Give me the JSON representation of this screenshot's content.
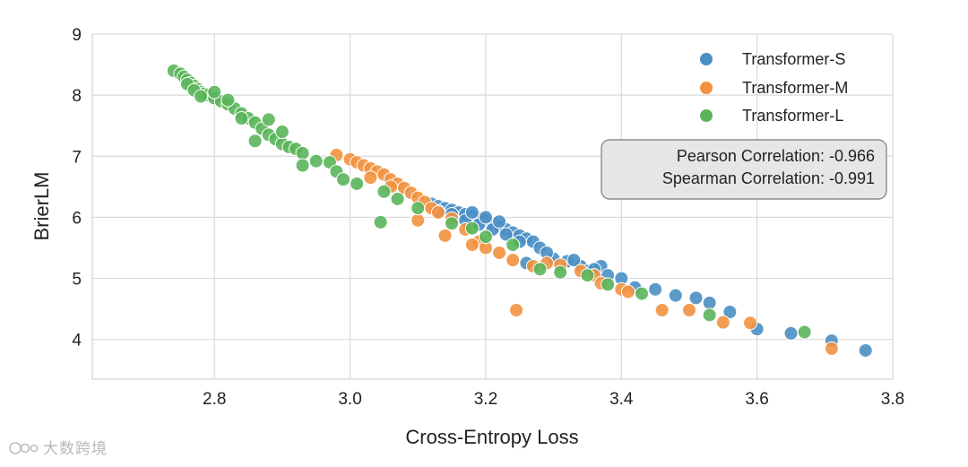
{
  "chart_data": {
    "type": "scatter",
    "title": "",
    "xlabel": "Cross-Entropy Loss",
    "ylabel": "BrierLM",
    "xlim": [
      2.62,
      3.8
    ],
    "ylim": [
      3.35,
      9.0
    ],
    "xticks": [
      "2.8",
      "3.0",
      "3.2",
      "3.4",
      "3.6",
      "3.8"
    ],
    "yticks": [
      "4",
      "5",
      "6",
      "7",
      "8",
      "9"
    ],
    "grid": true,
    "legend_position": "top-right",
    "colors": {
      "Transformer-S": "#4a8fc4",
      "Transformer-M": "#f2923f",
      "Transformer-L": "#5ab55a",
      "box_fill": "#e6e6e6",
      "box_border": "#8c8c8c"
    },
    "annotation": [
      "Pearson Correlation: -0.966",
      "Spearman Correlation: -0.991"
    ],
    "series": [
      {
        "name": "Transformer-S",
        "color": "#4a8fc4",
        "points": [
          [
            3.12,
            6.22
          ],
          [
            3.13,
            6.18
          ],
          [
            3.14,
            6.15
          ],
          [
            3.15,
            6.12
          ],
          [
            3.16,
            6.08
          ],
          [
            3.17,
            6.05
          ],
          [
            3.18,
            6.02
          ],
          [
            3.19,
            5.98
          ],
          [
            3.2,
            5.95
          ],
          [
            3.21,
            5.9
          ],
          [
            3.22,
            5.85
          ],
          [
            3.23,
            5.8
          ],
          [
            3.24,
            5.75
          ],
          [
            3.25,
            5.7
          ],
          [
            3.26,
            5.65
          ],
          [
            3.27,
            5.6
          ],
          [
            3.28,
            5.5
          ],
          [
            3.26,
            5.25
          ],
          [
            3.3,
            5.32
          ],
          [
            3.32,
            5.28
          ],
          [
            3.34,
            5.2
          ],
          [
            3.35,
            5.12
          ],
          [
            3.37,
            5.2
          ],
          [
            3.38,
            5.05
          ],
          [
            3.4,
            5.0
          ],
          [
            3.42,
            4.85
          ],
          [
            3.45,
            4.82
          ],
          [
            3.48,
            4.72
          ],
          [
            3.51,
            4.68
          ],
          [
            3.53,
            4.6
          ],
          [
            3.56,
            4.45
          ],
          [
            3.6,
            4.17
          ],
          [
            3.65,
            4.1
          ],
          [
            3.71,
            3.98
          ],
          [
            3.76,
            3.82
          ],
          [
            3.13,
            6.1
          ],
          [
            3.15,
            6.05
          ],
          [
            3.17,
            5.95
          ],
          [
            3.19,
            5.88
          ],
          [
            3.21,
            5.8
          ],
          [
            3.23,
            5.72
          ],
          [
            3.25,
            5.6
          ],
          [
            3.18,
            6.08
          ],
          [
            3.2,
            6.0
          ],
          [
            3.22,
            5.93
          ],
          [
            3.29,
            5.42
          ],
          [
            3.33,
            5.3
          ],
          [
            3.36,
            5.15
          ]
        ]
      },
      {
        "name": "Transformer-M",
        "color": "#f2923f",
        "points": [
          [
            2.98,
            7.02
          ],
          [
            3.0,
            6.95
          ],
          [
            3.01,
            6.9
          ],
          [
            3.02,
            6.85
          ],
          [
            3.03,
            6.8
          ],
          [
            3.04,
            6.75
          ],
          [
            3.05,
            6.7
          ],
          [
            3.06,
            6.62
          ],
          [
            3.07,
            6.55
          ],
          [
            3.08,
            6.48
          ],
          [
            3.09,
            6.4
          ],
          [
            3.1,
            6.32
          ],
          [
            3.11,
            6.25
          ],
          [
            3.12,
            6.15
          ],
          [
            3.13,
            6.08
          ],
          [
            3.15,
            5.98
          ],
          [
            3.17,
            5.8
          ],
          [
            3.19,
            5.6
          ],
          [
            3.2,
            5.5
          ],
          [
            3.22,
            5.42
          ],
          [
            3.24,
            5.3
          ],
          [
            3.27,
            5.2
          ],
          [
            3.29,
            5.25
          ],
          [
            3.31,
            5.22
          ],
          [
            3.34,
            5.12
          ],
          [
            3.36,
            5.05
          ],
          [
            3.37,
            4.92
          ],
          [
            3.4,
            4.82
          ],
          [
            3.41,
            4.78
          ],
          [
            3.46,
            4.48
          ],
          [
            3.5,
            4.48
          ],
          [
            3.55,
            4.28
          ],
          [
            3.59,
            4.27
          ],
          [
            3.71,
            3.85
          ],
          [
            3.245,
            4.48
          ],
          [
            3.1,
            5.95
          ],
          [
            3.14,
            5.7
          ],
          [
            3.18,
            5.55
          ],
          [
            3.06,
            6.5
          ],
          [
            3.03,
            6.65
          ]
        ]
      },
      {
        "name": "Transformer-L",
        "color": "#5ab55a",
        "points": [
          [
            2.74,
            8.4
          ],
          [
            2.75,
            8.35
          ],
          [
            2.755,
            8.3
          ],
          [
            2.76,
            8.25
          ],
          [
            2.765,
            8.2
          ],
          [
            2.77,
            8.15
          ],
          [
            2.775,
            8.1
          ],
          [
            2.78,
            8.05
          ],
          [
            2.785,
            8.02
          ],
          [
            2.79,
            8.0
          ],
          [
            2.8,
            7.95
          ],
          [
            2.81,
            7.9
          ],
          [
            2.82,
            7.85
          ],
          [
            2.83,
            7.78
          ],
          [
            2.84,
            7.7
          ],
          [
            2.85,
            7.62
          ],
          [
            2.86,
            7.55
          ],
          [
            2.87,
            7.45
          ],
          [
            2.88,
            7.35
          ],
          [
            2.89,
            7.28
          ],
          [
            2.9,
            7.2
          ],
          [
            2.91,
            7.15
          ],
          [
            2.92,
            7.12
          ],
          [
            2.93,
            7.05
          ],
          [
            2.93,
            6.85
          ],
          [
            2.95,
            6.92
          ],
          [
            2.97,
            6.9
          ],
          [
            2.98,
            6.75
          ],
          [
            2.99,
            6.62
          ],
          [
            3.01,
            6.55
          ],
          [
            3.05,
            6.42
          ],
          [
            3.07,
            6.3
          ],
          [
            3.1,
            6.15
          ],
          [
            3.045,
            5.92
          ],
          [
            3.15,
            5.9
          ],
          [
            3.18,
            5.82
          ],
          [
            3.2,
            5.68
          ],
          [
            3.24,
            5.55
          ],
          [
            3.28,
            5.15
          ],
          [
            3.31,
            5.1
          ],
          [
            3.35,
            5.05
          ],
          [
            3.38,
            4.9
          ],
          [
            3.43,
            4.75
          ],
          [
            3.53,
            4.4
          ],
          [
            3.67,
            4.12
          ],
          [
            2.76,
            8.18
          ],
          [
            2.77,
            8.08
          ],
          [
            2.78,
            7.98
          ],
          [
            2.8,
            8.05
          ],
          [
            2.82,
            7.92
          ],
          [
            2.84,
            7.62
          ],
          [
            2.86,
            7.25
          ],
          [
            2.88,
            7.6
          ],
          [
            2.9,
            7.4
          ]
        ]
      }
    ]
  },
  "watermark": "大数跨境"
}
